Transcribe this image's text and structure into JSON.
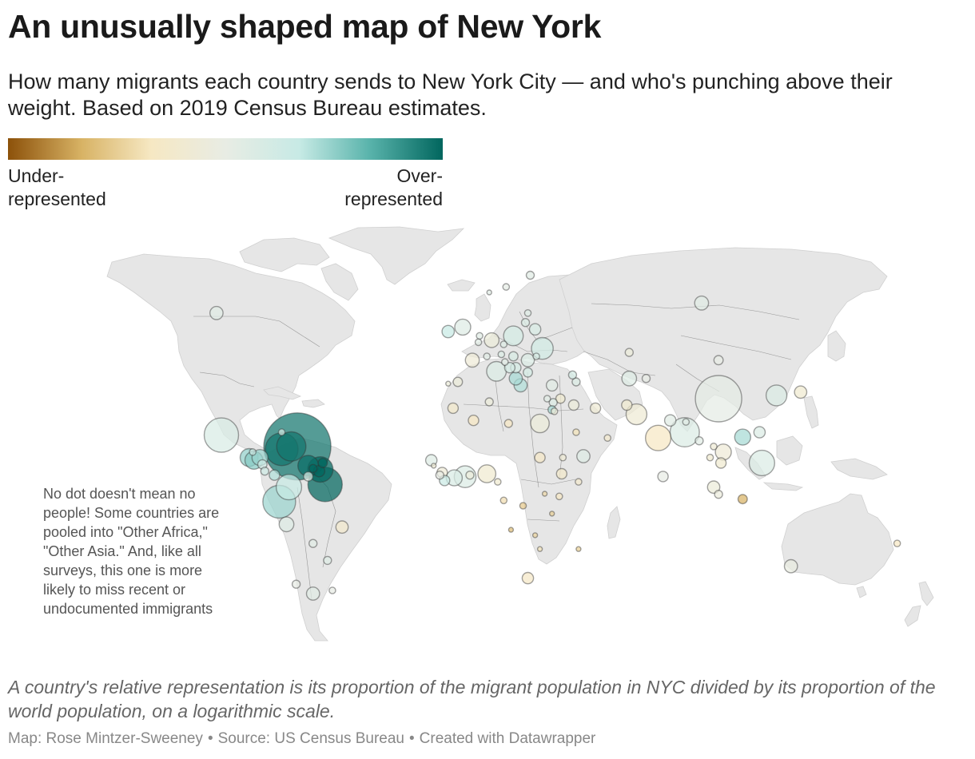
{
  "title": "An unusually shaped map of New York",
  "subtitle": "How many migrants each country sends to New York City — and who's punching above their weight. Based on 2019 Census Bureau estimates.",
  "legend": {
    "low_label": "Under-\nrepresented",
    "high_label": "Over-\nrepresented",
    "colors": [
      "#8c510a",
      "#d8b365",
      "#f6e8c3",
      "#e8ece4",
      "#c7eae5",
      "#5ab4ac",
      "#01665e"
    ]
  },
  "annotation": "No dot doesn't mean no people! Some countries are pooled into \"Other Africa,\" \"Other Asia.\" And, like all surveys, this one is more likely to miss recent or undocumented immigrants",
  "note": "A country's relative representation is its proportion of the migrant population in NYC divided by its proportion of the world population, on a logarithmic scale.",
  "footer": {
    "author": "Map: Rose Mintzer-Sweeney",
    "source": "Source: US Census Bureau",
    "credit": "Created with Datawrapper"
  },
  "map": {
    "land_color": "#e6e6e6",
    "border_color": "#555555",
    "scale_min": -3,
    "scale_max": 3
  },
  "bubbles": [
    {
      "lon": 97,
      "lat": 59,
      "rep": 0.2,
      "size": 9
    },
    {
      "lon": 104,
      "lat": 35,
      "rep": 0.1,
      "size": 100
    },
    {
      "lon": 79,
      "lat": 22,
      "rep": -1.0,
      "size": 30
    },
    {
      "lon": -102,
      "lat": 23,
      "rep": 0.5,
      "size": 55
    },
    {
      "lon": -70.5,
      "lat": 19,
      "rep": 2.8,
      "size": 210
    },
    {
      "lon": -77,
      "lat": 18,
      "rep": 2.8,
      "size": 50
    },
    {
      "lon": -73,
      "lat": 19,
      "rep": 2.8,
      "size": 40
    },
    {
      "lon": -66,
      "lat": 12,
      "rep": 2.9,
      "size": 20
    },
    {
      "lon": -64,
      "lat": 11,
      "rep": 3.0,
      "size": 3
    },
    {
      "lon": -61,
      "lat": 10.6,
      "rep": 3.0,
      "size": 30
    },
    {
      "lon": -60,
      "lat": 13,
      "rep": 3.0,
      "size": 4
    },
    {
      "lon": -61.5,
      "lat": 10,
      "rep": 3.0,
      "size": 6
    },
    {
      "lon": -59,
      "lat": 5,
      "rep": 3.0,
      "size": 55
    },
    {
      "lon": -74,
      "lat": 4,
      "rep": 1.0,
      "size": 30
    },
    {
      "lon": -78,
      "lat": -1.5,
      "rep": 1.4,
      "size": 50
    },
    {
      "lon": -75,
      "lat": -10,
      "rep": 0.3,
      "size": 10
    },
    {
      "lon": -66,
      "lat": 8,
      "rep": 0.4,
      "size": 4
    },
    {
      "lon": -90.5,
      "lat": 15,
      "rep": 1.5,
      "size": 15
    },
    {
      "lon": -88.5,
      "lat": 14,
      "rep": 1.6,
      "size": 15
    },
    {
      "lon": -86,
      "lat": 15,
      "rep": 1.4,
      "size": 12
    },
    {
      "lon": -85,
      "lat": 12.5,
      "rep": 0.8,
      "size": 4
    },
    {
      "lon": -84,
      "lat": 10,
      "rep": 0.8,
      "size": 3
    },
    {
      "lon": -80,
      "lat": 8.5,
      "rep": 1.2,
      "size": 5
    },
    {
      "lon": -89,
      "lat": 17,
      "rep": 0.8,
      "size": 2
    },
    {
      "lon": -77,
      "lat": 24,
      "rep": 0.6,
      "size": 2
    },
    {
      "lon": -104,
      "lat": 57,
      "rep": 0.2,
      "size": 8
    },
    {
      "lon": -52,
      "lat": -11,
      "rep": -0.7,
      "size": 7
    },
    {
      "lon": -64,
      "lat": -17,
      "rep": 0.2,
      "size": 3
    },
    {
      "lon": -58,
      "lat": -23,
      "rep": 0.3,
      "size": 3
    },
    {
      "lon": -64,
      "lat": -34,
      "rep": 0.2,
      "size": 8
    },
    {
      "lon": -71,
      "lat": -31,
      "rep": 0.0,
      "size": 3
    },
    {
      "lon": -56,
      "lat": -33,
      "rep": 0.0,
      "size": 2
    },
    {
      "lon": -8,
      "lat": 53,
      "rep": 1.0,
      "size": 7
    },
    {
      "lon": -2,
      "lat": 54,
      "rep": 0.3,
      "size": 12
    },
    {
      "lon": 9,
      "lat": 61,
      "rep": 0.2,
      "size": 1
    },
    {
      "lon": 16,
      "lat": 62,
      "rep": 0.1,
      "size": 2
    },
    {
      "lon": 26,
      "lat": 64,
      "rep": 0.2,
      "size": 3
    },
    {
      "lon": 2,
      "lat": 46,
      "rep": -0.4,
      "size": 9
    },
    {
      "lon": -4,
      "lat": 40,
      "rep": -0.3,
      "size": 4
    },
    {
      "lon": -8,
      "lat": 39.5,
      "rep": -0.3,
      "size": 1
    },
    {
      "lon": 10,
      "lat": 51,
      "rep": -0.3,
      "size": 10
    },
    {
      "lon": 12,
      "lat": 43,
      "rep": 0.4,
      "size": 18
    },
    {
      "lon": 5,
      "lat": 52,
      "rep": 0.2,
      "size": 2
    },
    {
      "lon": 4.5,
      "lat": 50.5,
      "rep": 0.2,
      "size": 2
    },
    {
      "lon": 8,
      "lat": 47,
      "rep": 0.2,
      "size": 2
    },
    {
      "lon": 14,
      "lat": 47.5,
      "rep": 0.4,
      "size": 2
    },
    {
      "lon": 19,
      "lat": 52,
      "rep": 0.6,
      "size": 18
    },
    {
      "lon": 15,
      "lat": 50,
      "rep": 0.3,
      "size": 2
    },
    {
      "lon": 19,
      "lat": 47,
      "rep": 0.5,
      "size": 4
    },
    {
      "lon": 25,
      "lat": 46,
      "rep": 0.4,
      "size": 8
    },
    {
      "lon": 25,
      "lat": 42.7,
      "rep": 0.6,
      "size": 4
    },
    {
      "lon": 22,
      "lat": 39,
      "rep": 1.2,
      "size": 8
    },
    {
      "lon": 35,
      "lat": 39,
      "rep": 0.2,
      "size": 6
    },
    {
      "lon": 31,
      "lat": 49,
      "rep": 0.7,
      "size": 22
    },
    {
      "lon": 28,
      "lat": 53.5,
      "rep": 0.5,
      "size": 6
    },
    {
      "lon": 24,
      "lat": 55,
      "rep": 0.4,
      "size": 3
    },
    {
      "lon": 25,
      "lat": 57,
      "rep": 0.3,
      "size": 2
    },
    {
      "lon": 20,
      "lat": 44,
      "rep": 0.6,
      "size": 5
    },
    {
      "lon": 17.5,
      "lat": 44,
      "rep": 0.6,
      "size": 5
    },
    {
      "lon": 20,
      "lat": 41,
      "rep": 1.3,
      "size": 8
    },
    {
      "lon": 15.5,
      "lat": 45.5,
      "rep": 0.2,
      "size": 2
    },
    {
      "lon": 28.5,
      "lat": 47,
      "rep": 0.5,
      "size": 2
    },
    {
      "lon": 45,
      "lat": 40,
      "rep": 0.4,
      "size": 3
    },
    {
      "lon": 43.5,
      "lat": 42,
      "rep": 0.6,
      "size": 3
    },
    {
      "lon": 67,
      "lat": 41,
      "rep": 0.3,
      "size": 10
    },
    {
      "lon": 74,
      "lat": 41,
      "rep": 0.0,
      "size": 3
    },
    {
      "lon": 67,
      "lat": 48,
      "rep": -0.3,
      "size": 3
    },
    {
      "lon": 104,
      "lat": 46,
      "rep": 0.0,
      "size": 4
    },
    {
      "lon": 128,
      "lat": 36,
      "rep": 0.4,
      "size": 20
    },
    {
      "lon": 138,
      "lat": 37,
      "rep": -0.6,
      "size": 7
    },
    {
      "lon": 121,
      "lat": 24,
      "rep": 0.4,
      "size": 6
    },
    {
      "lon": 114,
      "lat": 22.3,
      "rep": 1.3,
      "size": 12
    },
    {
      "lon": 90,
      "lat": 24,
      "rep": 0.4,
      "size": 40
    },
    {
      "lon": 84,
      "lat": 28,
      "rep": 0.2,
      "size": 6
    },
    {
      "lon": 90.5,
      "lat": 27.5,
      "rep": 0.2,
      "size": 2
    },
    {
      "lon": 70,
      "lat": 30,
      "rep": -0.5,
      "size": 20
    },
    {
      "lon": 66,
      "lat": 33,
      "rep": -0.6,
      "size": 5
    },
    {
      "lon": 53,
      "lat": 32,
      "rep": -0.5,
      "size": 5
    },
    {
      "lon": 44,
      "lat": 33,
      "rep": -0.3,
      "size": 5
    },
    {
      "lon": 38.5,
      "lat": 35,
      "rep": -0.6,
      "size": 4
    },
    {
      "lon": 35.5,
      "lat": 33.8,
      "rep": 0.4,
      "size": 3
    },
    {
      "lon": 35,
      "lat": 31.5,
      "rep": 1.3,
      "size": 3
    },
    {
      "lon": 36,
      "lat": 31,
      "rep": -0.3,
      "size": 2
    },
    {
      "lon": 33,
      "lat": 35,
      "rep": 0.2,
      "size": 2
    },
    {
      "lon": 45,
      "lat": 24,
      "rep": -1.1,
      "size": 2
    },
    {
      "lon": 48,
      "lat": 15.5,
      "rep": 0.3,
      "size": 8
    },
    {
      "lon": 39,
      "lat": 9,
      "rep": -0.8,
      "size": 5
    },
    {
      "lon": 39.5,
      "lat": 15,
      "rep": -0.5,
      "size": 2
    },
    {
      "lon": 46,
      "lat": 6,
      "rep": -0.7,
      "size": 2
    },
    {
      "lon": 38,
      "lat": 0.5,
      "rep": -1.0,
      "size": 2
    },
    {
      "lon": 32,
      "lat": 1.5,
      "rep": -1.3,
      "size": 1
    },
    {
      "lon": 35,
      "lat": -6,
      "rep": -1.5,
      "size": 1
    },
    {
      "lon": 30,
      "lat": 15,
      "rep": -0.9,
      "size": 5
    },
    {
      "lon": 30,
      "lat": 27,
      "rep": -0.3,
      "size": 16
    },
    {
      "lon": 17,
      "lat": 27,
      "rep": -1.0,
      "size": 3
    },
    {
      "lon": 9,
      "lat": 34,
      "rep": -0.3,
      "size": 3
    },
    {
      "lon": 2.5,
      "lat": 28,
      "rep": -1.0,
      "size": 5
    },
    {
      "lon": -6,
      "lat": 32,
      "rep": -0.8,
      "size": 5
    },
    {
      "lon": -15,
      "lat": 14,
      "rep": 0.3,
      "size": 6
    },
    {
      "lon": -14,
      "lat": 12,
      "rep": -0.5,
      "size": 1
    },
    {
      "lon": -10.5,
      "lat": 9.5,
      "rep": -0.4,
      "size": 5
    },
    {
      "lon": -11.5,
      "lat": 8.5,
      "rep": 0.0,
      "size": 3
    },
    {
      "lon": -9.5,
      "lat": 6.5,
      "rep": 0.9,
      "size": 5
    },
    {
      "lon": -5.5,
      "lat": 7.5,
      "rep": 0.5,
      "size": 12
    },
    {
      "lon": -1,
      "lat": 7.9,
      "rep": 0.4,
      "size": 22
    },
    {
      "lon": 8,
      "lat": 9,
      "rep": -0.6,
      "size": 15
    },
    {
      "lon": 1,
      "lat": 8.5,
      "rep": -0.3,
      "size": 3
    },
    {
      "lon": 12.5,
      "lat": 6,
      "rep": -0.6,
      "size": 2
    },
    {
      "lon": 15,
      "lat": -1,
      "rep": -1.2,
      "size": 2
    },
    {
      "lon": 23,
      "lat": -3,
      "rep": -1.6,
      "size": 2
    },
    {
      "lon": 18,
      "lat": -12,
      "rep": -1.8,
      "size": 1
    },
    {
      "lon": 28,
      "lat": -14,
      "rep": -1.4,
      "size": 1
    },
    {
      "lon": 30,
      "lat": -19,
      "rep": -1.1,
      "size": 1
    },
    {
      "lon": 25,
      "lat": -29,
      "rep": -0.9,
      "size": 6
    },
    {
      "lon": 46,
      "lat": -19,
      "rep": -1.5,
      "size": 1
    },
    {
      "lon": 58,
      "lat": 22,
      "rep": -0.7,
      "size": 2
    },
    {
      "lon": 100.5,
      "lat": 15,
      "rep": -0.6,
      "size": 2
    },
    {
      "lon": 96,
      "lat": 21,
      "rep": 0.2,
      "size": 3
    },
    {
      "lon": 105,
      "lat": 13,
      "rep": -0.6,
      "size": 5
    },
    {
      "lon": 106,
      "lat": 17,
      "rep": -0.4,
      "size": 12
    },
    {
      "lon": 102,
      "lat": 19,
      "rep": -0.5,
      "size": 2
    },
    {
      "lon": 102,
      "lat": 4,
      "rep": -0.3,
      "size": 7
    },
    {
      "lon": 104,
      "lat": 1.3,
      "rep": -0.2,
      "size": 3
    },
    {
      "lon": 81,
      "lat": 8,
      "rep": 0.0,
      "size": 5
    },
    {
      "lon": 122,
      "lat": 13,
      "rep": 0.4,
      "size": 30
    },
    {
      "lon": 114,
      "lat": -0.5,
      "rep": -2.0,
      "size": 4
    },
    {
      "lon": 134,
      "lat": -25,
      "rep": -0.1,
      "size": 8
    },
    {
      "lon": 178,
      "lat": -17,
      "rep": -1.0,
      "size": 2
    }
  ]
}
